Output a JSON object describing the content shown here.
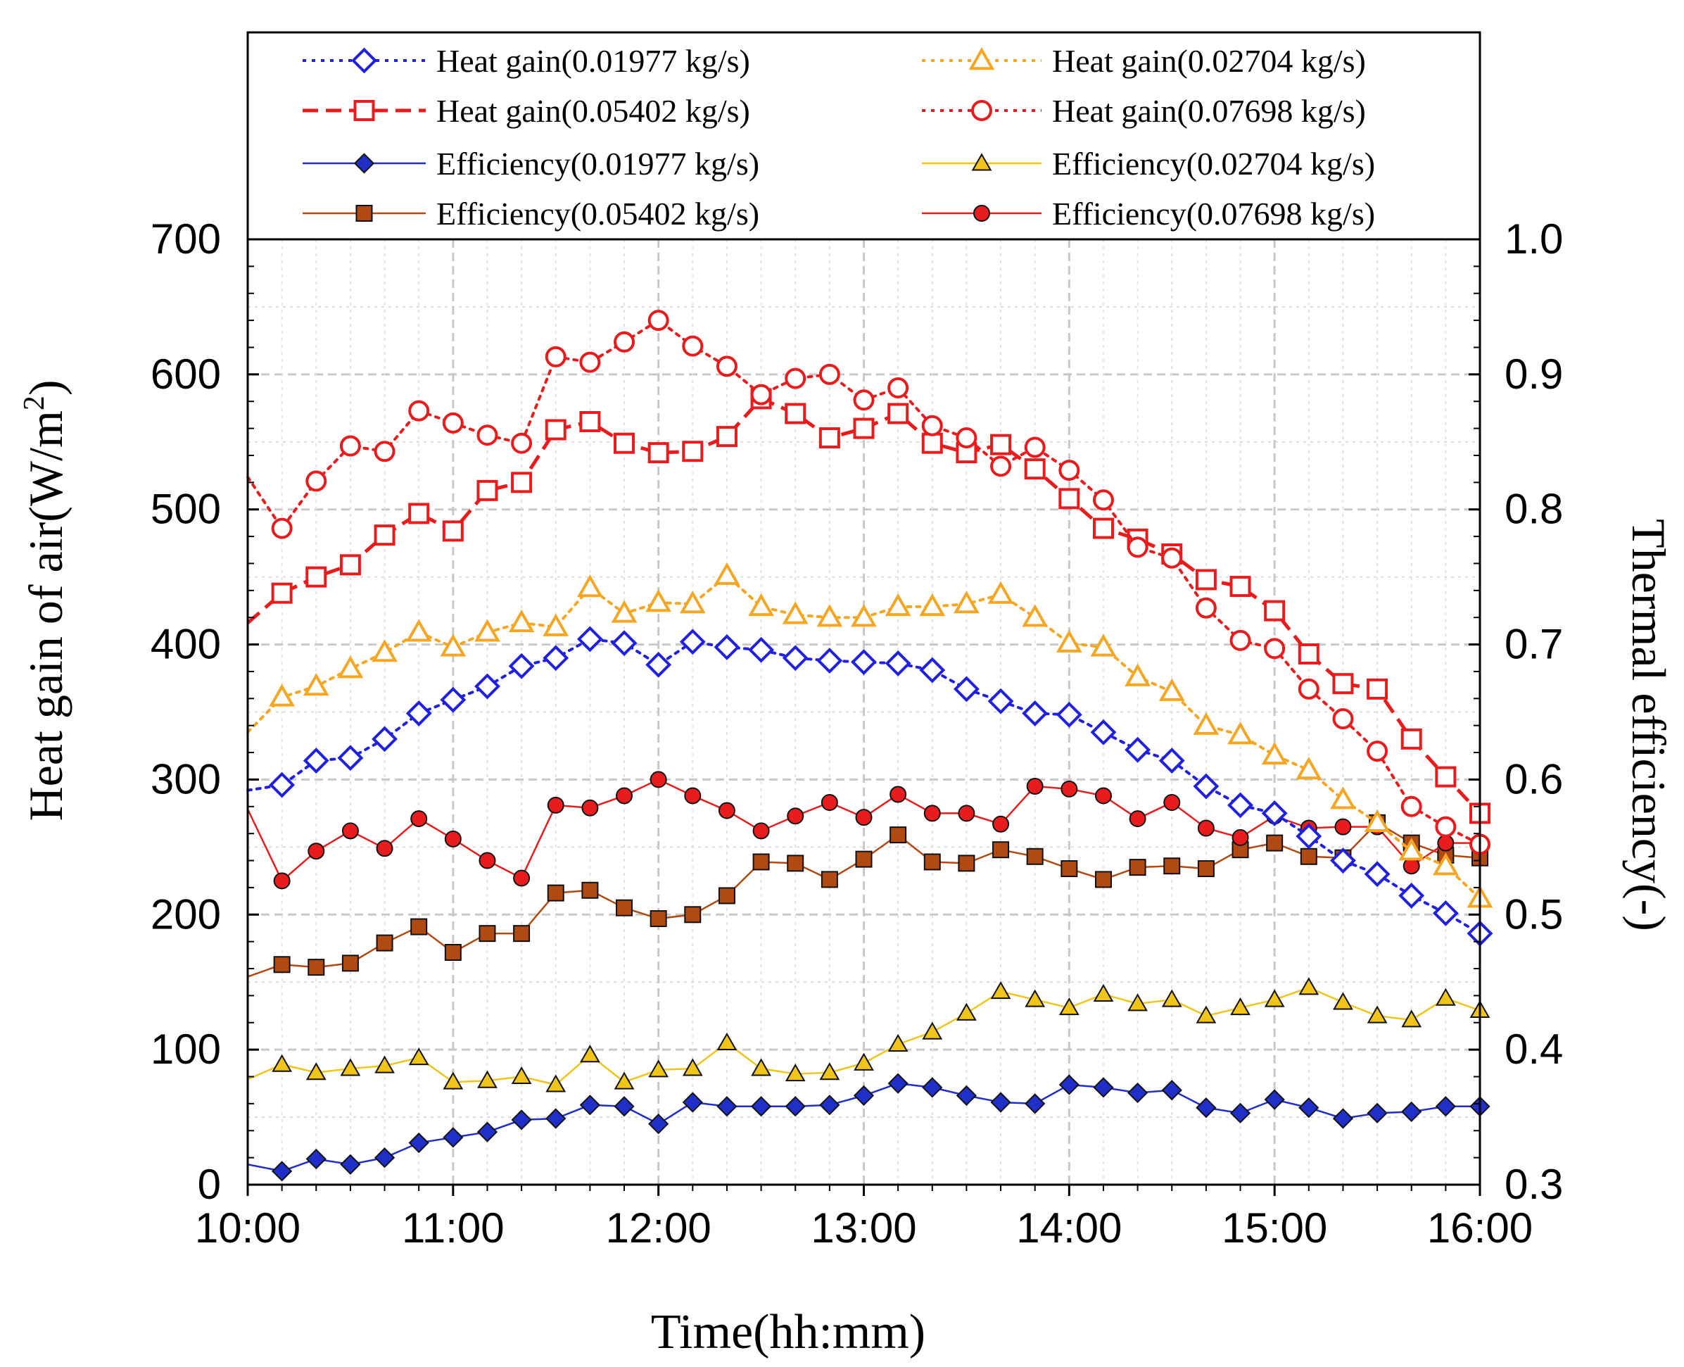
{
  "chart_data": {
    "type": "line",
    "title": "",
    "xlabel": "Time(hh:mm)",
    "ylabel": "Heat gain of air(W/m",
    "ylabel_sup": "2",
    "ylabel_close": ")",
    "y2label": "Thermal efficiency(-)",
    "xlim": [
      0,
      360
    ],
    "ylim": [
      0,
      700
    ],
    "y2lim": [
      0.3,
      1.0
    ],
    "x_ticks": [
      0,
      60,
      120,
      180,
      240,
      300,
      360
    ],
    "x_tick_labels": [
      "10:00",
      "11:00",
      "12:00",
      "13:00",
      "14:00",
      "15:00",
      "16:00"
    ],
    "y_ticks": [
      0,
      100,
      200,
      300,
      400,
      500,
      600,
      700
    ],
    "y_tick_labels": [
      "0",
      "100",
      "200",
      "300",
      "400",
      "500",
      "600",
      "700"
    ],
    "y2_ticks": [
      0.3,
      0.4,
      0.5,
      0.6,
      0.7,
      0.8,
      0.9,
      1.0
    ],
    "y2_tick_labels": [
      "0.3",
      "0.4",
      "0.5",
      "0.6",
      "0.7",
      "0.8",
      "0.9",
      "1.0"
    ],
    "grid": true,
    "legend_position": "top",
    "x": [
      0,
      10,
      20,
      30,
      40,
      50,
      60,
      70,
      80,
      90,
      100,
      110,
      120,
      130,
      140,
      150,
      160,
      170,
      180,
      190,
      200,
      210,
      220,
      230,
      240,
      250,
      260,
      270,
      280,
      290,
      300,
      310,
      320,
      330,
      340,
      350,
      360
    ],
    "series": [
      {
        "name": "Heat gain(0.01977 kg/s)",
        "axis": "left",
        "color": "#2020e0",
        "line": "dotted",
        "marker": "diamond",
        "filled": false,
        "values": [
          292,
          296,
          314,
          316,
          330,
          349,
          359,
          369,
          384,
          390,
          404,
          401,
          385,
          402,
          398,
          396,
          390,
          388,
          387,
          386,
          381,
          367,
          358,
          349,
          348,
          335,
          322,
          314,
          295,
          281,
          275,
          258,
          240,
          230,
          214,
          201,
          186
        ]
      },
      {
        "name": "Heat gain(0.02704 kg/s)",
        "axis": "left",
        "color": "#f5a623",
        "line": "dotted",
        "marker": "triangle",
        "filled": false,
        "values": [
          335,
          361,
          369,
          382,
          394,
          409,
          398,
          409,
          416,
          413,
          442,
          423,
          431,
          430,
          451,
          428,
          422,
          420,
          420,
          428,
          428,
          430,
          437,
          420,
          401,
          398,
          376,
          365,
          340,
          333,
          318,
          307,
          285,
          268,
          247,
          236,
          212
        ]
      },
      {
        "name": "Heat gain(0.05402 kg/s)",
        "axis": "left",
        "color": "#e81c1c",
        "line": "dashed",
        "marker": "square",
        "filled": false,
        "values": [
          416,
          438,
          450,
          459,
          481,
          497,
          484,
          514,
          520,
          559,
          565,
          549,
          542,
          543,
          554,
          582,
          571,
          553,
          560,
          571,
          549,
          542,
          548,
          530,
          508,
          486,
          478,
          467,
          448,
          443,
          425,
          393,
          371,
          367,
          330,
          302,
          275
        ]
      },
      {
        "name": "Heat gain(0.07698 kg/s)",
        "axis": "left",
        "color": "#e81c1c",
        "line": "dotted",
        "marker": "circle",
        "filled": false,
        "values": [
          524,
          486,
          521,
          547,
          543,
          573,
          564,
          555,
          549,
          613,
          609,
          624,
          640,
          621,
          606,
          585,
          597,
          600,
          581,
          590,
          562,
          553,
          532,
          546,
          529,
          507,
          472,
          464,
          427,
          403,
          397,
          367,
          345,
          321,
          280,
          265,
          252
        ]
      },
      {
        "name": "Efficiency(0.01977 kg/s)",
        "axis": "right",
        "color": "#1f2fc8",
        "line": "solid",
        "marker": "diamond",
        "filled": true,
        "values": [
          0.315,
          0.31,
          0.319,
          0.315,
          0.32,
          0.331,
          0.335,
          0.339,
          0.348,
          0.349,
          0.359,
          0.358,
          0.345,
          0.361,
          0.358,
          0.358,
          0.358,
          0.359,
          0.366,
          0.375,
          0.372,
          0.366,
          0.361,
          0.36,
          0.374,
          0.372,
          0.368,
          0.37,
          0.357,
          0.353,
          0.363,
          0.357,
          0.349,
          0.353,
          0.354,
          0.358,
          0.358
        ]
      },
      {
        "name": "Efficiency(0.02704 kg/s)",
        "axis": "right",
        "color": "#f0c419",
        "line": "solid",
        "marker": "triangle",
        "filled": true,
        "values": [
          0.378,
          0.389,
          0.383,
          0.386,
          0.388,
          0.394,
          0.376,
          0.377,
          0.38,
          0.374,
          0.396,
          0.376,
          0.385,
          0.386,
          0.405,
          0.386,
          0.382,
          0.383,
          0.39,
          0.404,
          0.413,
          0.427,
          0.443,
          0.437,
          0.431,
          0.441,
          0.434,
          0.437,
          0.425,
          0.431,
          0.437,
          0.446,
          0.435,
          0.425,
          0.422,
          0.438,
          0.429
        ]
      },
      {
        "name": "Efficiency(0.05402 kg/s)",
        "axis": "right",
        "color": "#b04a12",
        "line": "solid",
        "marker": "square",
        "filled": true,
        "values": [
          0.454,
          0.463,
          0.461,
          0.464,
          0.479,
          0.491,
          0.472,
          0.486,
          0.486,
          0.516,
          0.518,
          0.505,
          0.497,
          0.5,
          0.514,
          0.539,
          0.538,
          0.526,
          0.541,
          0.559,
          0.539,
          0.538,
          0.548,
          0.543,
          0.534,
          0.526,
          0.535,
          0.536,
          0.534,
          0.548,
          0.553,
          0.543,
          0.542,
          0.568,
          0.553,
          0.544,
          0.542
        ]
      },
      {
        "name": "Efficiency(0.07698 kg/s)",
        "axis": "right",
        "color": "#e81c1c",
        "line": "solid",
        "marker": "circle",
        "filled": true,
        "values": [
          0.578,
          0.525,
          0.547,
          0.562,
          0.549,
          0.571,
          0.556,
          0.54,
          0.527,
          0.581,
          0.579,
          0.588,
          0.6,
          0.588,
          0.577,
          0.562,
          0.573,
          0.583,
          0.572,
          0.589,
          0.575,
          0.575,
          0.567,
          0.595,
          0.593,
          0.588,
          0.571,
          0.583,
          0.564,
          0.557,
          0.573,
          0.564,
          0.565,
          0.565,
          0.536,
          0.553,
          0.553
        ]
      }
    ]
  }
}
